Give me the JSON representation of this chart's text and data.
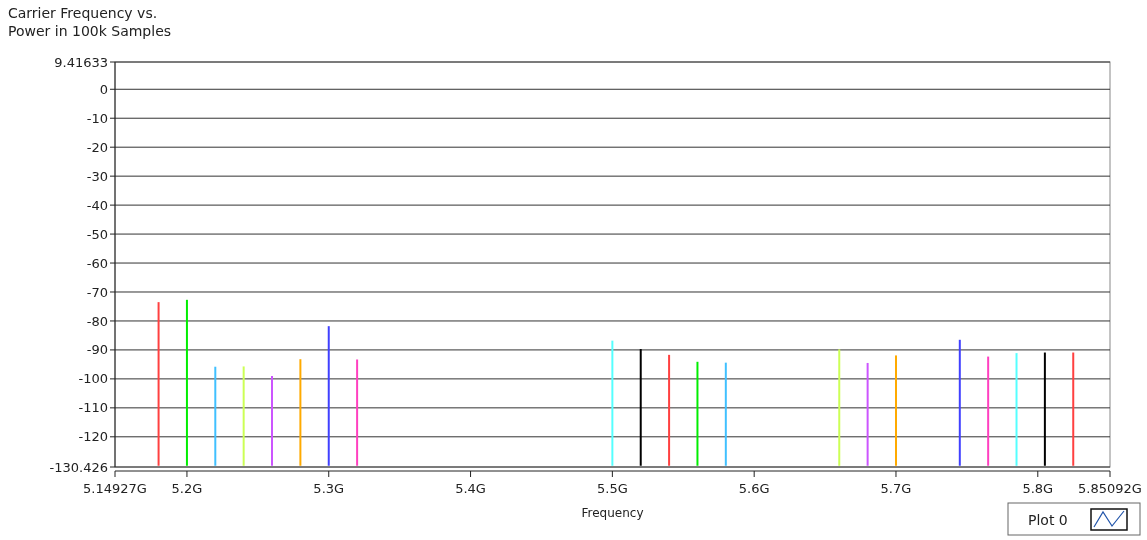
{
  "chart_data": {
    "type": "line",
    "title": "Carrier Frequency vs.\nPower in 100k Samples",
    "xlabel": "Frequency",
    "annotations": [
      "Plot 0"
    ],
    "xlim": [
      5.14927,
      5.85092
    ],
    "xticks": [
      {
        "value": 5.14927,
        "label": "5.14927G"
      },
      {
        "value": 5.2,
        "label": "5.2G"
      },
      {
        "value": 5.3,
        "label": "5.3G"
      },
      {
        "value": 5.4,
        "label": "5.4G"
      },
      {
        "value": 5.5,
        "label": "5.5G"
      },
      {
        "value": 5.6,
        "label": "5.6G"
      },
      {
        "value": 5.7,
        "label": "5.7G"
      },
      {
        "value": 5.8,
        "label": "5.8G"
      },
      {
        "value": 5.85092,
        "label": "5.85092G"
      }
    ],
    "ylim": [
      -130.426,
      9.41633
    ],
    "yticks": [
      9.41633,
      0,
      -10,
      -20,
      -30,
      -40,
      -50,
      -60,
      -70,
      -80,
      -90,
      -100,
      -110,
      -120,
      -130.426
    ],
    "grid": "y",
    "marker": "none",
    "line_style": "solid",
    "series": [
      {
        "color": "#ff4040",
        "x": [
          5.18,
          5.18
        ],
        "values": [
          -130,
          -73.5
        ]
      },
      {
        "color": "#00ee00",
        "x": [
          5.2,
          5.2
        ],
        "values": [
          -130,
          -72.7
        ]
      },
      {
        "color": "#40c0ff",
        "x": [
          5.22,
          5.22
        ],
        "values": [
          -130,
          -95.8
        ]
      },
      {
        "color": "#ccff55",
        "x": [
          5.24,
          5.24
        ],
        "values": [
          -130,
          -95.7
        ]
      },
      {
        "color": "#cc55ff",
        "x": [
          5.26,
          5.26
        ],
        "values": [
          -130,
          -99
        ]
      },
      {
        "color": "#ffaa00",
        "x": [
          5.28,
          5.28
        ],
        "values": [
          -130,
          -93.2
        ]
      },
      {
        "color": "#4040ff",
        "x": [
          5.3,
          5.3
        ],
        "values": [
          -130,
          -81.8
        ]
      },
      {
        "color": "#ff40c0",
        "x": [
          5.32,
          5.32
        ],
        "values": [
          -130,
          -93.3
        ]
      },
      {
        "color": "#55ffff",
        "x": [
          5.5,
          5.5
        ],
        "values": [
          -130,
          -86.8
        ]
      },
      {
        "color": "#000000",
        "x": [
          5.52,
          5.52
        ],
        "values": [
          -130,
          -89.7
        ]
      },
      {
        "color": "#ff4040",
        "x": [
          5.54,
          5.54
        ],
        "values": [
          -130,
          -91.7
        ]
      },
      {
        "color": "#00ee00",
        "x": [
          5.56,
          5.56
        ],
        "values": [
          -130,
          -94.1
        ]
      },
      {
        "color": "#40c0ff",
        "x": [
          5.58,
          5.58
        ],
        "values": [
          -130,
          -94.4
        ]
      },
      {
        "color": "#ccff55",
        "x": [
          5.66,
          5.66
        ],
        "values": [
          -130,
          -89.8
        ]
      },
      {
        "color": "#cc55ff",
        "x": [
          5.68,
          5.68
        ],
        "values": [
          -130,
          -94.5
        ]
      },
      {
        "color": "#ffaa00",
        "x": [
          5.7,
          5.7
        ],
        "values": [
          -130,
          -91.9
        ]
      },
      {
        "color": "#4040ff",
        "x": [
          5.745,
          5.745
        ],
        "values": [
          -130,
          -86.5
        ]
      },
      {
        "color": "#ff40c0",
        "x": [
          5.765,
          5.765
        ],
        "values": [
          -130,
          -92.3
        ]
      },
      {
        "color": "#55ffff",
        "x": [
          5.785,
          5.785
        ],
        "values": [
          -130,
          -91.1
        ]
      },
      {
        "color": "#000000",
        "x": [
          5.805,
          5.805
        ],
        "values": [
          -130,
          -90.9
        ]
      },
      {
        "color": "#ff4040",
        "x": [
          5.825,
          5.825
        ],
        "values": [
          -130,
          -90.9
        ]
      }
    ]
  }
}
